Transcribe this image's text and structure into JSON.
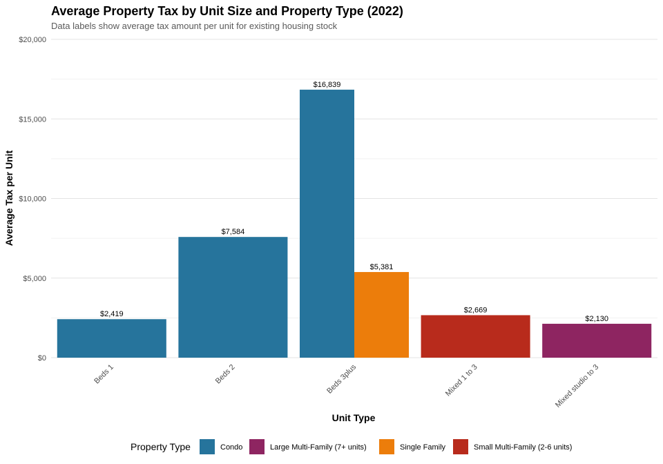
{
  "chart_data": {
    "type": "bar",
    "title": "Average Property Tax by Unit Size and Property Type (2022)",
    "subtitle": "Data labels show average tax amount per unit for existing housing stock",
    "xlabel": "Unit Type",
    "ylabel": "Average Tax per Unit",
    "ylim": [
      0,
      20000
    ],
    "y_ticks": [
      0,
      5000,
      10000,
      15000,
      20000
    ],
    "y_tick_labels": [
      "$0",
      "$5,000",
      "$10,000",
      "$15,000",
      "$20,000"
    ],
    "grid": true,
    "categories": [
      "Beds 1",
      "Beds 2",
      "Beds 3plus",
      "Mixed 1 to 3",
      "Mixed studio to 3"
    ],
    "series": [
      {
        "name": "Condo",
        "color": "#26749c",
        "values": [
          2419,
          7584,
          16839,
          null,
          null
        ]
      },
      {
        "name": "Large Multi-Family (7+ units)",
        "color": "#8e2561",
        "values": [
          null,
          null,
          null,
          null,
          2130
        ]
      },
      {
        "name": "Single Family",
        "color": "#ec7d0b",
        "values": [
          null,
          null,
          5381,
          null,
          null
        ]
      },
      {
        "name": "Small Multi-Family (2-6 units)",
        "color": "#b82b1c",
        "values": [
          null,
          null,
          null,
          2669,
          null
        ]
      }
    ],
    "data_labels": [
      {
        "category": "Beds 1",
        "series": "Condo",
        "text": "$2,419"
      },
      {
        "category": "Beds 2",
        "series": "Condo",
        "text": "$7,584"
      },
      {
        "category": "Beds 3plus",
        "series": "Condo",
        "text": "$16,839"
      },
      {
        "category": "Beds 3plus",
        "series": "Single Family",
        "text": "$5,381"
      },
      {
        "category": "Mixed 1 to 3",
        "series": "Small Multi-Family (2-6 units)",
        "text": "$2,669"
      },
      {
        "category": "Mixed studio to 3",
        "series": "Large Multi-Family (7+ units)",
        "text": "$2,130"
      }
    ],
    "legend": {
      "title": "Property Type",
      "position": "bottom",
      "entries": [
        "Condo",
        "Large Multi-Family (7+ units)",
        "Single Family",
        "Small Multi-Family (2-6 units)"
      ]
    }
  }
}
